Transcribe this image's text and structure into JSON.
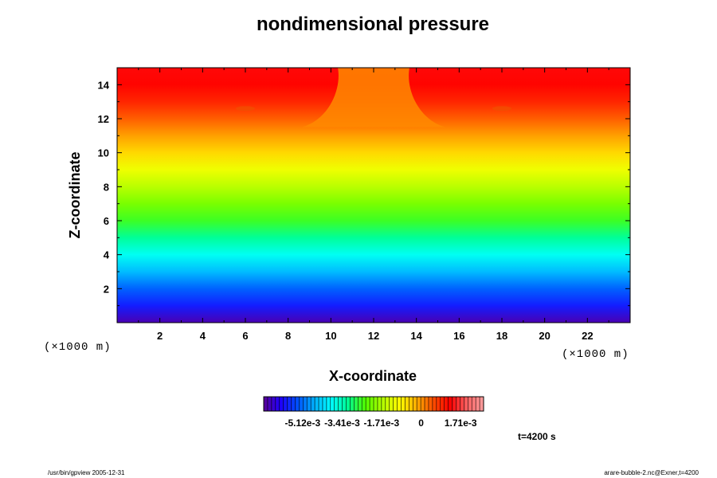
{
  "chart_data": {
    "type": "heatmap",
    "title": "nondimensional pressure",
    "xlabel": "X-coordinate",
    "ylabel": "Z-coordinate",
    "x_unit_note": "(×1000 m)",
    "y_unit_note": "(×1000 m)",
    "xlim": [
      0,
      24
    ],
    "ylim": [
      0,
      15
    ],
    "x_ticks": [
      2,
      4,
      6,
      8,
      10,
      12,
      14,
      16,
      18,
      20,
      22
    ],
    "y_ticks": [
      2,
      4,
      6,
      8,
      10,
      12,
      14
    ],
    "grid": false,
    "colorbar": {
      "tick_labels": [
        "-5.12e-3",
        "-3.41e-3",
        "-1.71e-3",
        "0",
        "1.71e-3"
      ],
      "tick_values": [
        -0.00512,
        -0.00341,
        -0.00171,
        0,
        0.00171
      ],
      "range": [
        -0.0068,
        0.0027
      ],
      "colors": [
        "#5a0096",
        "#1e00ff",
        "#0050ff",
        "#00b0ff",
        "#00ffff",
        "#00ff90",
        "#50ff00",
        "#b0ff00",
        "#ffff00",
        "#ffb000",
        "#ff5000",
        "#ff0000",
        "#ff6060",
        "#ffa0a0"
      ]
    },
    "profile_note": "field varies mainly with height",
    "profile": [
      {
        "z": 0.0,
        "value": -0.0066
      },
      {
        "z": 1.0,
        "value": -0.0058
      },
      {
        "z": 2.0,
        "value": -0.0052
      },
      {
        "z": 3.0,
        "value": -0.0045
      },
      {
        "z": 4.0,
        "value": -0.0038
      },
      {
        "z": 5.0,
        "value": -0.0032
      },
      {
        "z": 6.0,
        "value": -0.0026
      },
      {
        "z": 7.0,
        "value": -0.0021
      },
      {
        "z": 8.0,
        "value": -0.0016
      },
      {
        "z": 9.0,
        "value": -0.0011
      },
      {
        "z": 10.0,
        "value": -0.0006
      },
      {
        "z": 11.0,
        "value": -0.0001
      },
      {
        "z": 12.0,
        "value": 0.0004
      },
      {
        "z": 13.0,
        "value": 0.0009
      },
      {
        "z": 14.0,
        "value": 0.0012
      },
      {
        "z": 15.0,
        "value": 0.0013
      }
    ],
    "anomaly": {
      "x_center": 12,
      "z_bottom": 11.5,
      "note": "orange plume near top centre"
    }
  },
  "annotations": {
    "time_label": "t=4200 s",
    "footer_left": "/usr/bin/gpview 2005-12-31",
    "footer_right": "arare-bubble-2.nc@Exner,t=4200"
  }
}
